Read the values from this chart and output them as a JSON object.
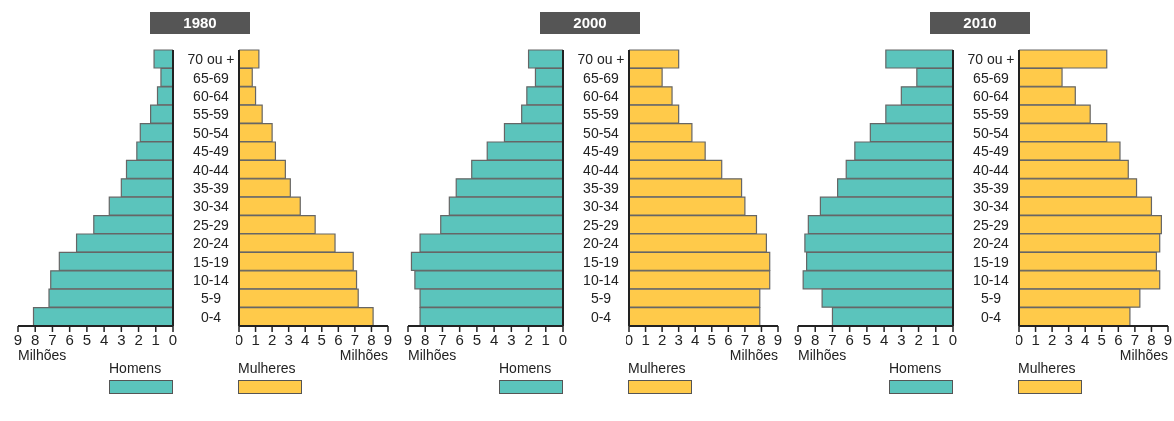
{
  "chart_data": [
    {
      "type": "bar",
      "orientation": "horizontal",
      "title": "1980",
      "xlabel": "Milhões",
      "categories": [
        "70 ou +",
        "65-69",
        "60-64",
        "55-59",
        "50-54",
        "45-49",
        "40-44",
        "35-39",
        "30-34",
        "25-29",
        "20-24",
        "15-19",
        "10-14",
        "5-9",
        "0-4"
      ],
      "xlim": [
        9,
        0
      ],
      "xticks": [
        9,
        8,
        7,
        6,
        5,
        4,
        3,
        2,
        1,
        0
      ],
      "legend": "bottom right",
      "grid": false,
      "series": [
        {
          "name": "Homens",
          "color": "#5bc4bc",
          "values": [
            1.1,
            0.7,
            0.9,
            1.3,
            1.9,
            2.1,
            2.7,
            3.0,
            3.7,
            4.6,
            5.6,
            6.6,
            7.1,
            7.2,
            8.1
          ]
        }
      ]
    },
    {
      "type": "bar",
      "orientation": "horizontal",
      "xlabel": "Milhões",
      "categories": [
        null,
        null,
        null,
        null,
        null,
        null,
        null,
        null,
        null,
        null,
        null,
        null,
        null,
        null,
        null
      ],
      "xlim": [
        0,
        9
      ],
      "xticks": [
        0,
        1,
        2,
        3,
        4,
        5,
        6,
        7,
        8,
        9
      ],
      "legend": "bottom left",
      "grid": false,
      "series": [
        {
          "name": "Mulheres",
          "color": "#ffca4a",
          "values": [
            1.2,
            0.8,
            1.0,
            1.4,
            2.0,
            2.2,
            2.8,
            3.1,
            3.7,
            4.6,
            5.8,
            6.9,
            7.1,
            7.2,
            8.1
          ]
        }
      ]
    },
    {
      "type": "bar",
      "orientation": "horizontal",
      "title": "2000",
      "xlabel": "Milhões",
      "categories": [
        "70 ou +",
        "65-69",
        "60-64",
        "55-59",
        "50-54",
        "45-49",
        "40-44",
        "35-39",
        "30-34",
        "25-29",
        "20-24",
        "15-19",
        "10-14",
        "5-9",
        "0-4"
      ],
      "xlim": [
        9,
        0
      ],
      "xticks": [
        9,
        8,
        7,
        6,
        5,
        4,
        3,
        2,
        1,
        0
      ],
      "legend": "bottom right",
      "grid": false,
      "series": [
        {
          "name": "Homens",
          "color": "#5bc4bc",
          "values": [
            2.0,
            1.6,
            2.1,
            2.4,
            3.4,
            4.4,
            5.3,
            6.2,
            6.6,
            7.1,
            8.3,
            8.8,
            8.6,
            8.3,
            8.3
          ]
        }
      ]
    },
    {
      "type": "bar",
      "orientation": "horizontal",
      "xlabel": "Milhões",
      "categories": [
        null,
        null,
        null,
        null,
        null,
        null,
        null,
        null,
        null,
        null,
        null,
        null,
        null,
        null,
        null
      ],
      "xlim": [
        0,
        9
      ],
      "xticks": [
        0,
        1,
        2,
        3,
        4,
        5,
        6,
        7,
        8,
        9
      ],
      "legend": "bottom left",
      "grid": false,
      "series": [
        {
          "name": "Mulheres",
          "color": "#ffca4a",
          "values": [
            3.0,
            2.0,
            2.6,
            3.0,
            3.8,
            4.6,
            5.6,
            6.8,
            7.0,
            7.7,
            8.3,
            8.5,
            8.5,
            7.9,
            7.9
          ]
        }
      ]
    },
    {
      "type": "bar",
      "orientation": "horizontal",
      "title": "2010",
      "xlabel": "Milhões",
      "categories": [
        "70 ou +",
        "65-69",
        "60-64",
        "55-59",
        "50-54",
        "45-49",
        "40-44",
        "35-39",
        "30-34",
        "25-29",
        "20-24",
        "15-19",
        "10-14",
        "5-9",
        "0-4"
      ],
      "xlim": [
        9,
        0
      ],
      "xticks": [
        9,
        8,
        7,
        6,
        5,
        4,
        3,
        2,
        1,
        0
      ],
      "legend": "bottom right",
      "grid": false,
      "series": [
        {
          "name": "Homens",
          "color": "#5bc4bc",
          "values": [
            3.9,
            2.1,
            3.0,
            3.9,
            4.8,
            5.7,
            6.2,
            6.7,
            7.7,
            8.4,
            8.6,
            8.5,
            8.7,
            7.6,
            7.0
          ]
        }
      ]
    },
    {
      "type": "bar",
      "orientation": "horizontal",
      "xlabel": "Milhões",
      "categories": [
        null,
        null,
        null,
        null,
        null,
        null,
        null,
        null,
        null,
        null,
        null,
        null,
        null,
        null,
        null
      ],
      "xlim": [
        0,
        9
      ],
      "xticks": [
        0,
        1,
        2,
        3,
        4,
        5,
        6,
        7,
        8,
        9
      ],
      "legend": "bottom left",
      "grid": false,
      "series": [
        {
          "name": "Mulheres",
          "color": "#ffca4a",
          "values": [
            5.3,
            2.6,
            3.4,
            4.3,
            5.3,
            6.1,
            6.6,
            7.1,
            8.0,
            8.6,
            8.5,
            8.3,
            8.5,
            7.3,
            6.7
          ]
        }
      ]
    }
  ]
}
